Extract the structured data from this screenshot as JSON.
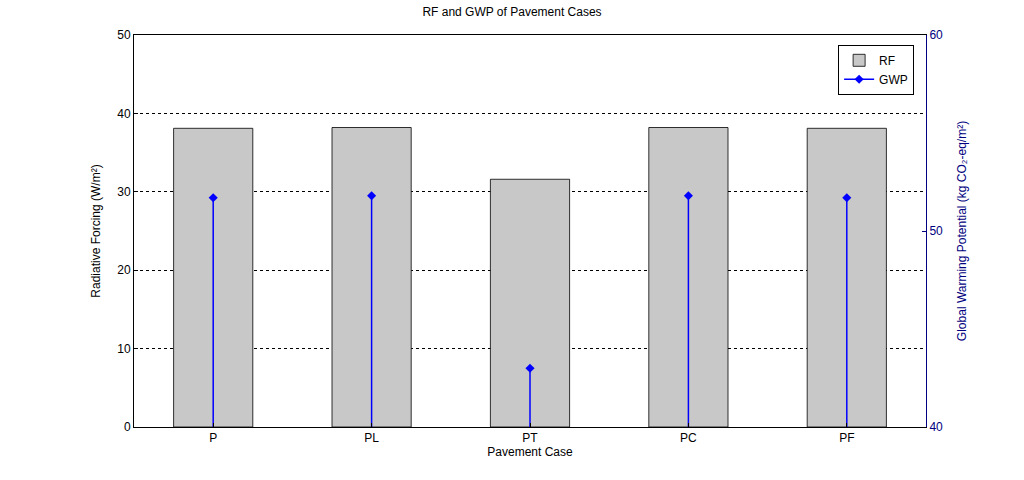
{
  "chart_data": {
    "type": "bar",
    "title": "RF and GWP of Pavement Cases",
    "x_label": "Pavement Case",
    "y_label": "Radiative Forcing (W/m²)",
    "y2_label": "Global Warming Potential (kg CO₂-eq/m²)",
    "categories": [
      "P",
      "PL",
      "PT",
      "PC",
      "PF"
    ],
    "series": [
      {
        "name": "RF",
        "type": "bar",
        "color": "#c8c8c8",
        "values": [
          38.1,
          38.2,
          31.6,
          38.2,
          38.1
        ]
      },
      {
        "name": "GWP",
        "type": "stem",
        "axis": "y2",
        "color": "#0000ff",
        "marker": "diamond",
        "values": [
          51.7,
          51.8,
          43.0,
          51.8,
          51.7
        ]
      }
    ],
    "ylim": [
      0,
      50
    ],
    "yticks": [
      0,
      10,
      20,
      30,
      40,
      50
    ],
    "y2lim": [
      40,
      60
    ],
    "y2ticks": [
      40,
      50,
      60
    ],
    "grid": true,
    "legend": "upper right"
  }
}
